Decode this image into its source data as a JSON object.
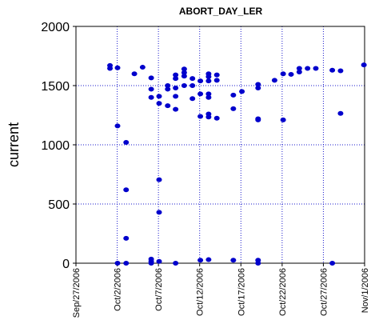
{
  "chart_data": {
    "type": "scatter",
    "title": "ABORT_DAY_LER",
    "xlabel": "",
    "ylabel": "current",
    "x_type": "date",
    "xlim": [
      "2006-09-27",
      "2006-11-01"
    ],
    "ylim": [
      0,
      2000
    ],
    "x_ticks": [
      "Sep/27/2006",
      "Oct/2/2006",
      "Oct/7/2006",
      "Oct/12/2006",
      "Oct/17/2006",
      "Oct/22/2006",
      "Oct/27/2006",
      "Nov/1/2006"
    ],
    "y_ticks": [
      0,
      500,
      1000,
      1500,
      2000
    ],
    "grid": true,
    "grid_style": "dotted",
    "legend": false,
    "colors": {
      "marker": "#0000cc",
      "grid": "#1a1acc",
      "axis": "#000000",
      "background": "#ffffff"
    },
    "series": [
      {
        "points": [
          {
            "x": "2006-10-01 03:00",
            "y": 1670
          },
          {
            "x": "2006-10-01 03:00",
            "y": 1645
          },
          {
            "x": "2006-10-02 01:00",
            "y": 1650
          },
          {
            "x": "2006-10-02 01:00",
            "y": 1160
          },
          {
            "x": "2006-10-02 01:00",
            "y": 0
          },
          {
            "x": "2006-10-03 02:00",
            "y": 1020
          },
          {
            "x": "2006-10-03 02:00",
            "y": 620
          },
          {
            "x": "2006-10-03 02:00",
            "y": 210
          },
          {
            "x": "2006-10-03 02:00",
            "y": 0
          },
          {
            "x": "2006-10-04 02:00",
            "y": 1600
          },
          {
            "x": "2006-10-05 02:00",
            "y": 1655
          },
          {
            "x": "2006-10-06 03:00",
            "y": 1565
          },
          {
            "x": "2006-10-06 03:00",
            "y": 1470
          },
          {
            "x": "2006-10-06 03:00",
            "y": 1400
          },
          {
            "x": "2006-10-06 03:00",
            "y": 35
          },
          {
            "x": "2006-10-06 03:00",
            "y": 15
          },
          {
            "x": "2006-10-06 03:00",
            "y": 0
          },
          {
            "x": "2006-10-07 02:00",
            "y": 1410
          },
          {
            "x": "2006-10-07 02:00",
            "y": 1350
          },
          {
            "x": "2006-10-07 02:00",
            "y": 705
          },
          {
            "x": "2006-10-07 02:00",
            "y": 430
          },
          {
            "x": "2006-10-07 02:00",
            "y": 15
          },
          {
            "x": "2006-10-08 03:00",
            "y": 1500
          },
          {
            "x": "2006-10-08 03:00",
            "y": 1470
          },
          {
            "x": "2006-10-08 03:00",
            "y": 1330
          },
          {
            "x": "2006-10-09 02:00",
            "y": 1590
          },
          {
            "x": "2006-10-09 02:00",
            "y": 1560
          },
          {
            "x": "2006-10-09 02:00",
            "y": 1480
          },
          {
            "x": "2006-10-09 02:00",
            "y": 1410
          },
          {
            "x": "2006-10-09 02:00",
            "y": 1300
          },
          {
            "x": "2006-10-09 02:00",
            "y": 0
          },
          {
            "x": "2006-10-10 03:00",
            "y": 1640
          },
          {
            "x": "2006-10-10 03:00",
            "y": 1610
          },
          {
            "x": "2006-10-10 03:00",
            "y": 1580
          },
          {
            "x": "2006-10-10 03:00",
            "y": 1500
          },
          {
            "x": "2006-10-11 03:00",
            "y": 1560
          },
          {
            "x": "2006-10-11 03:00",
            "y": 1500
          },
          {
            "x": "2006-10-11 03:00",
            "y": 1390
          },
          {
            "x": "2006-10-12 02:00",
            "y": 1540
          },
          {
            "x": "2006-10-12 02:00",
            "y": 1430
          },
          {
            "x": "2006-10-12 02:00",
            "y": 1240
          },
          {
            "x": "2006-10-12 02:00",
            "y": 25
          },
          {
            "x": "2006-10-13 02:00",
            "y": 1600
          },
          {
            "x": "2006-10-13 02:00",
            "y": 1575
          },
          {
            "x": "2006-10-13 02:00",
            "y": 1540
          },
          {
            "x": "2006-10-13 02:00",
            "y": 1430
          },
          {
            "x": "2006-10-13 02:00",
            "y": 1400
          },
          {
            "x": "2006-10-13 02:00",
            "y": 1260
          },
          {
            "x": "2006-10-13 02:00",
            "y": 1235
          },
          {
            "x": "2006-10-13 02:00",
            "y": 30
          },
          {
            "x": "2006-10-14 02:00",
            "y": 1590
          },
          {
            "x": "2006-10-14 02:00",
            "y": 1545
          },
          {
            "x": "2006-10-14 02:00",
            "y": 1225
          },
          {
            "x": "2006-10-16 02:00",
            "y": 1420
          },
          {
            "x": "2006-10-16 02:00",
            "y": 1305
          },
          {
            "x": "2006-10-16 02:00",
            "y": 25
          },
          {
            "x": "2006-10-17 03:00",
            "y": 1450
          },
          {
            "x": "2006-10-19 02:00",
            "y": 1510
          },
          {
            "x": "2006-10-19 02:00",
            "y": 1480
          },
          {
            "x": "2006-10-19 02:00",
            "y": 1220
          },
          {
            "x": "2006-10-19 02:00",
            "y": 1210
          },
          {
            "x": "2006-10-19 02:00",
            "y": 25
          },
          {
            "x": "2006-10-19 02:00",
            "y": 0
          },
          {
            "x": "2006-10-21 02:00",
            "y": 1545
          },
          {
            "x": "2006-10-22 03:00",
            "y": 1600
          },
          {
            "x": "2006-10-22 03:00",
            "y": 1210
          },
          {
            "x": "2006-10-23 02:00",
            "y": 1595
          },
          {
            "x": "2006-10-24 02:00",
            "y": 1645
          },
          {
            "x": "2006-10-24 02:00",
            "y": 1615
          },
          {
            "x": "2006-10-25 02:00",
            "y": 1645
          },
          {
            "x": "2006-10-26 02:00",
            "y": 1645
          },
          {
            "x": "2006-10-28 02:00",
            "y": 1630
          },
          {
            "x": "2006-10-28 02:00",
            "y": 0
          },
          {
            "x": "2006-10-29 02:00",
            "y": 1625
          },
          {
            "x": "2006-10-29 02:00",
            "y": 1265
          },
          {
            "x": "2006-10-31 22:00",
            "y": 1675
          }
        ]
      }
    ]
  }
}
